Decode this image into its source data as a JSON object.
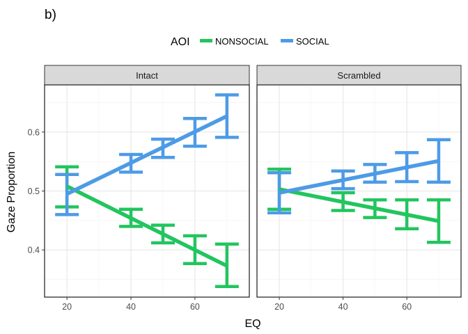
{
  "chart_data": {
    "type": "line",
    "tag": "b)",
    "xlabel": "EQ",
    "ylabel": "Gaze Proportion",
    "xlim": [
      13,
      77
    ],
    "ylim": [
      0.32,
      0.68
    ],
    "x_ticks": [
      20,
      40,
      60
    ],
    "y_ticks": [
      0.4,
      0.5,
      0.6
    ],
    "x_tick_labels": [
      "20",
      "40",
      "60"
    ],
    "y_tick_labels": [
      "0.4",
      "0.5",
      "0.6"
    ],
    "grid": true,
    "legend": {
      "title": "AOI",
      "position": "top",
      "entries": [
        {
          "label": "NONSOCIAL",
          "color": "#22c55e"
        },
        {
          "label": "SOCIAL",
          "color": "#4d9be6"
        }
      ]
    },
    "panels": [
      {
        "title": "Intact",
        "series": [
          {
            "name": "NONSOCIAL",
            "color": "#22c55e",
            "line": [
              [
                20,
                0.508
              ],
              [
                70,
                0.373
              ]
            ],
            "errorbars": [
              {
                "x": 20,
                "ymin": 0.473,
                "ymax": 0.541
              },
              {
                "x": 40,
                "ymin": 0.44,
                "ymax": 0.469
              },
              {
                "x": 50,
                "ymin": 0.412,
                "ymax": 0.442
              },
              {
                "x": 60,
                "ymin": 0.377,
                "ymax": 0.424
              },
              {
                "x": 70,
                "ymin": 0.338,
                "ymax": 0.41
              }
            ]
          },
          {
            "name": "SOCIAL",
            "color": "#4d9be6",
            "line": [
              [
                20,
                0.495
              ],
              [
                70,
                0.627
              ]
            ],
            "errorbars": [
              {
                "x": 20,
                "ymin": 0.46,
                "ymax": 0.528
              },
              {
                "x": 40,
                "ymin": 0.532,
                "ymax": 0.562
              },
              {
                "x": 50,
                "ymin": 0.557,
                "ymax": 0.588
              },
              {
                "x": 60,
                "ymin": 0.576,
                "ymax": 0.623
              },
              {
                "x": 70,
                "ymin": 0.591,
                "ymax": 0.663
              }
            ]
          }
        ]
      },
      {
        "title": "Scrambled",
        "series": [
          {
            "name": "NONSOCIAL",
            "color": "#22c55e",
            "line": [
              [
                20,
                0.503
              ],
              [
                70,
                0.449
              ]
            ],
            "errorbars": [
              {
                "x": 20,
                "ymin": 0.469,
                "ymax": 0.537
              },
              {
                "x": 40,
                "ymin": 0.467,
                "ymax": 0.497
              },
              {
                "x": 50,
                "ymin": 0.455,
                "ymax": 0.485
              },
              {
                "x": 60,
                "ymin": 0.436,
                "ymax": 0.485
              },
              {
                "x": 70,
                "ymin": 0.413,
                "ymax": 0.485
              }
            ]
          },
          {
            "name": "SOCIAL",
            "color": "#4d9be6",
            "line": [
              [
                20,
                0.497
              ],
              [
                70,
                0.551
              ]
            ],
            "errorbars": [
              {
                "x": 20,
                "ymin": 0.463,
                "ymax": 0.531
              },
              {
                "x": 40,
                "ymin": 0.504,
                "ymax": 0.534
              },
              {
                "x": 50,
                "ymin": 0.515,
                "ymax": 0.545
              },
              {
                "x": 60,
                "ymin": 0.516,
                "ymax": 0.565
              },
              {
                "x": 70,
                "ymin": 0.515,
                "ymax": 0.587
              }
            ]
          }
        ]
      }
    ]
  }
}
